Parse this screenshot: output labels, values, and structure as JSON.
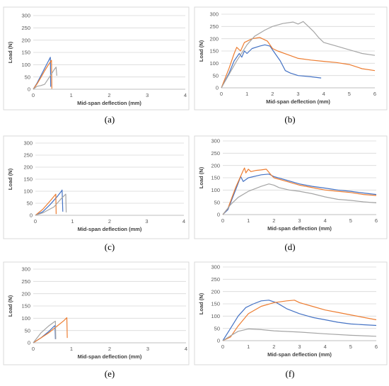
{
  "colors": {
    "blue": "#4472c4",
    "orange": "#ed7d31",
    "gray": "#a5a5a5"
  },
  "chart_data": [
    {
      "id": "a",
      "caption": "(a)",
      "type": "line",
      "xlabel": "Mid-span deflection (mm)",
      "ylabel": "Load (N)",
      "xlim": [
        0,
        4
      ],
      "ylim": [
        0,
        300
      ],
      "xticks": [
        0,
        1,
        2,
        3,
        4
      ],
      "yticks": [
        0,
        50,
        100,
        150,
        200,
        250,
        300
      ],
      "grid": "horizontal",
      "series": [
        {
          "color": "blue",
          "points": [
            [
              0,
              0
            ],
            [
              0.1,
              25
            ],
            [
              0.2,
              55
            ],
            [
              0.3,
              85
            ],
            [
              0.4,
              115
            ],
            [
              0.45,
              130
            ],
            [
              0.46,
              10
            ]
          ]
        },
        {
          "color": "orange",
          "points": [
            [
              0,
              0
            ],
            [
              0.1,
              22
            ],
            [
              0.2,
              48
            ],
            [
              0.3,
              75
            ],
            [
              0.4,
              100
            ],
            [
              0.48,
              118
            ],
            [
              0.49,
              2
            ]
          ]
        },
        {
          "color": "gray",
          "points": [
            [
              0,
              0
            ],
            [
              0.1,
              12
            ],
            [
              0.2,
              15
            ],
            [
              0.3,
              20
            ],
            [
              0.45,
              55
            ],
            [
              0.55,
              80
            ],
            [
              0.6,
              90
            ],
            [
              0.62,
              55
            ]
          ]
        }
      ]
    },
    {
      "id": "b",
      "caption": "(b)",
      "type": "line",
      "xlabel": "Mid-span deflection (mm)",
      "ylabel": "Load (N)",
      "xlim": [
        0,
        6
      ],
      "ylim": [
        0,
        300
      ],
      "xticks": [
        0,
        1,
        2,
        3,
        4,
        5,
        6
      ],
      "yticks": [
        0,
        50,
        100,
        150,
        200,
        250,
        300
      ],
      "grid": "horizontal",
      "series": [
        {
          "color": "blue",
          "points": [
            [
              0,
              0
            ],
            [
              0.3,
              60
            ],
            [
              0.5,
              110
            ],
            [
              0.7,
              140
            ],
            [
              0.8,
              125
            ],
            [
              0.9,
              150
            ],
            [
              1.0,
              140
            ],
            [
              1.2,
              160
            ],
            [
              1.5,
              170
            ],
            [
              1.7,
              175
            ],
            [
              1.9,
              170
            ],
            [
              2.1,
              140
            ],
            [
              2.3,
              110
            ],
            [
              2.5,
              70
            ],
            [
              2.7,
              60
            ],
            [
              3.0,
              50
            ],
            [
              3.5,
              45
            ],
            [
              3.9,
              40
            ]
          ]
        },
        {
          "color": "orange",
          "points": [
            [
              0,
              0
            ],
            [
              0.3,
              80
            ],
            [
              0.5,
              140
            ],
            [
              0.6,
              165
            ],
            [
              0.75,
              150
            ],
            [
              0.9,
              185
            ],
            [
              1.2,
              200
            ],
            [
              1.5,
              205
            ],
            [
              1.8,
              190
            ],
            [
              2.0,
              160
            ],
            [
              2.2,
              150
            ],
            [
              2.6,
              135
            ],
            [
              3.0,
              120
            ],
            [
              3.5,
              113
            ],
            [
              4.0,
              108
            ],
            [
              4.5,
              103
            ],
            [
              5.0,
              95
            ],
            [
              5.5,
              78
            ],
            [
              6.0,
              70
            ]
          ]
        },
        {
          "color": "gray",
          "points": [
            [
              0,
              0
            ],
            [
              0.3,
              55
            ],
            [
              0.6,
              110
            ],
            [
              1.0,
              175
            ],
            [
              1.3,
              210
            ],
            [
              1.7,
              235
            ],
            [
              2.0,
              250
            ],
            [
              2.4,
              262
            ],
            [
              2.8,
              268
            ],
            [
              3.0,
              260
            ],
            [
              3.2,
              270
            ],
            [
              3.4,
              250
            ],
            [
              3.6,
              230
            ],
            [
              3.8,
              205
            ],
            [
              4.0,
              185
            ],
            [
              4.5,
              170
            ],
            [
              5.0,
              155
            ],
            [
              5.5,
              140
            ],
            [
              6.0,
              132
            ]
          ]
        }
      ]
    },
    {
      "id": "c",
      "caption": "(c)",
      "type": "line",
      "xlabel": "Mid-span deflection (mm)",
      "ylabel": "Load (N)",
      "xlim": [
        0,
        4
      ],
      "ylim": [
        0,
        300
      ],
      "xticks": [
        0,
        1,
        2,
        3,
        4
      ],
      "yticks": [
        0,
        50,
        100,
        150,
        200,
        250,
        300
      ],
      "grid": "horizontal",
      "series": [
        {
          "color": "blue",
          "points": [
            [
              0,
              0
            ],
            [
              0.2,
              15
            ],
            [
              0.4,
              45
            ],
            [
              0.6,
              80
            ],
            [
              0.7,
              100
            ],
            [
              0.72,
              105
            ],
            [
              0.74,
              15
            ]
          ]
        },
        {
          "color": "orange",
          "points": [
            [
              0,
              0
            ],
            [
              0.2,
              25
            ],
            [
              0.4,
              60
            ],
            [
              0.55,
              88
            ],
            [
              0.56,
              5
            ]
          ]
        },
        {
          "color": "gray",
          "points": [
            [
              0,
              0
            ],
            [
              0.2,
              10
            ],
            [
              0.5,
              35
            ],
            [
              0.7,
              70
            ],
            [
              0.8,
              85
            ],
            [
              0.82,
              88
            ],
            [
              0.83,
              12
            ]
          ]
        }
      ]
    },
    {
      "id": "d",
      "caption": "(d)",
      "type": "line",
      "xlabel": "Mid-span deflection (mm)",
      "ylabel": "Load (N)",
      "xlim": [
        0,
        6
      ],
      "ylim": [
        0,
        300
      ],
      "xticks": [
        0,
        1,
        2,
        3,
        4,
        5,
        6
      ],
      "yticks": [
        0,
        50,
        100,
        150,
        200,
        250,
        300
      ],
      "grid": "horizontal",
      "series": [
        {
          "color": "blue",
          "points": [
            [
              0,
              0
            ],
            [
              0.2,
              20
            ],
            [
              0.5,
              100
            ],
            [
              0.7,
              155
            ],
            [
              0.8,
              135
            ],
            [
              1.0,
              150
            ],
            [
              1.5,
              162
            ],
            [
              1.8,
              165
            ],
            [
              2.0,
              155
            ],
            [
              2.5,
              140
            ],
            [
              3.0,
              125
            ],
            [
              3.5,
              115
            ],
            [
              4.0,
              108
            ],
            [
              4.5,
              100
            ],
            [
              5.0,
              95
            ],
            [
              5.5,
              88
            ],
            [
              6.0,
              82
            ]
          ]
        },
        {
          "color": "orange",
          "points": [
            [
              0,
              0
            ],
            [
              0.2,
              25
            ],
            [
              0.5,
              110
            ],
            [
              0.8,
              180
            ],
            [
              0.85,
              190
            ],
            [
              0.9,
              170
            ],
            [
              1.0,
              185
            ],
            [
              1.1,
              175
            ],
            [
              1.3,
              180
            ],
            [
              1.5,
              182
            ],
            [
              1.7,
              185
            ],
            [
              1.9,
              160
            ],
            [
              2.0,
              150
            ],
            [
              2.5,
              135
            ],
            [
              3.0,
              120
            ],
            [
              3.5,
              110
            ],
            [
              4.0,
              100
            ],
            [
              4.5,
              95
            ],
            [
              5.0,
              90
            ],
            [
              5.5,
              82
            ],
            [
              6.0,
              78
            ]
          ]
        },
        {
          "color": "gray",
          "points": [
            [
              0,
              0
            ],
            [
              0.3,
              40
            ],
            [
              0.6,
              70
            ],
            [
              1.0,
              95
            ],
            [
              1.5,
              115
            ],
            [
              1.8,
              125
            ],
            [
              2.0,
              120
            ],
            [
              2.2,
              110
            ],
            [
              2.6,
              100
            ],
            [
              3.0,
              95
            ],
            [
              3.5,
              85
            ],
            [
              4.0,
              72
            ],
            [
              4.5,
              62
            ],
            [
              5.0,
              58
            ],
            [
              5.5,
              52
            ],
            [
              6.0,
              48
            ]
          ]
        }
      ]
    },
    {
      "id": "e",
      "caption": "(e)",
      "type": "line",
      "xlabel": "Mid-span deflection (mm)",
      "ylabel": "Load (N)",
      "xlim": [
        0,
        4
      ],
      "ylim": [
        0,
        300
      ],
      "xticks": [
        0,
        1,
        2,
        3,
        4
      ],
      "yticks": [
        0,
        50,
        100,
        150,
        200,
        250,
        300
      ],
      "grid": "horizontal",
      "series": [
        {
          "color": "blue",
          "points": [
            [
              0,
              0
            ],
            [
              0.2,
              20
            ],
            [
              0.4,
              45
            ],
            [
              0.55,
              68
            ],
            [
              0.57,
              70
            ],
            [
              0.58,
              15
            ]
          ]
        },
        {
          "color": "orange",
          "points": [
            [
              0,
              0
            ],
            [
              0.2,
              20
            ],
            [
              0.4,
              40
            ],
            [
              0.6,
              65
            ],
            [
              0.8,
              90
            ],
            [
              0.88,
              102
            ],
            [
              0.89,
              20
            ]
          ]
        },
        {
          "color": "gray",
          "points": [
            [
              0,
              0
            ],
            [
              0.2,
              40
            ],
            [
              0.4,
              68
            ],
            [
              0.55,
              85
            ],
            [
              0.58,
              88
            ],
            [
              0.59,
              15
            ]
          ]
        }
      ]
    },
    {
      "id": "f",
      "caption": "(f)",
      "type": "line",
      "xlabel": "Mid-span deflection (mm)",
      "ylabel": "Load (N)",
      "xlim": [
        0,
        6
      ],
      "ylim": [
        0,
        300
      ],
      "xticks": [
        0,
        1,
        2,
        3,
        4,
        5,
        6
      ],
      "yticks": [
        0,
        50,
        100,
        150,
        200,
        250,
        300
      ],
      "grid": "horizontal",
      "series": [
        {
          "color": "blue",
          "points": [
            [
              0,
              0
            ],
            [
              0.3,
              50
            ],
            [
              0.6,
              100
            ],
            [
              0.9,
              135
            ],
            [
              1.2,
              150
            ],
            [
              1.5,
              162
            ],
            [
              1.8,
              165
            ],
            [
              2.1,
              155
            ],
            [
              2.5,
              130
            ],
            [
              3.0,
              110
            ],
            [
              3.5,
              95
            ],
            [
              4.0,
              85
            ],
            [
              4.5,
              75
            ],
            [
              5.0,
              68
            ],
            [
              5.5,
              65
            ],
            [
              6.0,
              62
            ]
          ]
        },
        {
          "color": "orange",
          "points": [
            [
              0,
              0
            ],
            [
              0.3,
              15
            ],
            [
              0.6,
              60
            ],
            [
              1.0,
              110
            ],
            [
              1.5,
              140
            ],
            [
              2.0,
              155
            ],
            [
              2.5,
              162
            ],
            [
              2.8,
              165
            ],
            [
              3.0,
              155
            ],
            [
              3.5,
              140
            ],
            [
              4.0,
              125
            ],
            [
              4.5,
              115
            ],
            [
              5.0,
              105
            ],
            [
              5.5,
              95
            ],
            [
              6.0,
              85
            ]
          ]
        },
        {
          "color": "gray",
          "points": [
            [
              0,
              0
            ],
            [
              0.3,
              20
            ],
            [
              0.6,
              38
            ],
            [
              1.0,
              48
            ],
            [
              1.5,
              45
            ],
            [
              2.0,
              40
            ],
            [
              3.0,
              35
            ],
            [
              4.0,
              28
            ],
            [
              5.0,
              22
            ],
            [
              6.0,
              18
            ]
          ]
        }
      ]
    }
  ]
}
